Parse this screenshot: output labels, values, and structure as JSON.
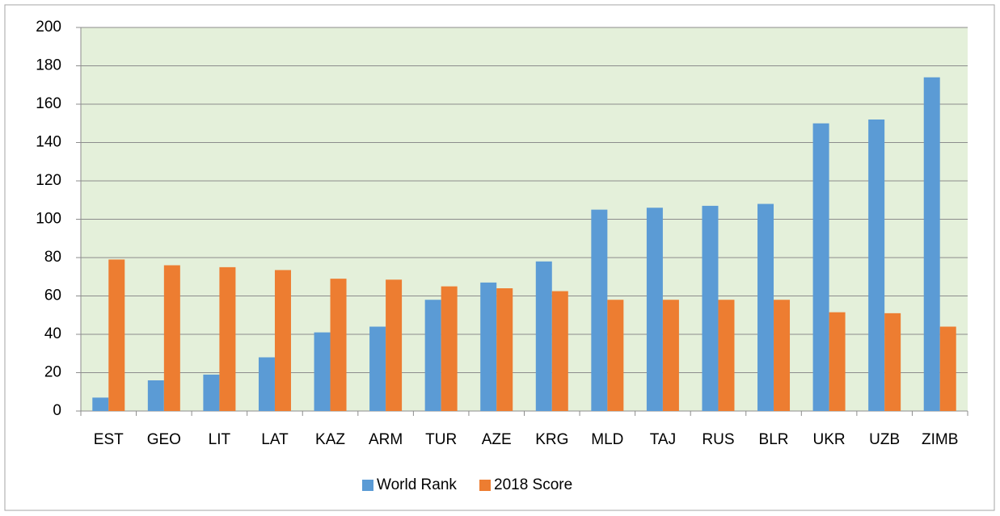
{
  "chart_data": {
    "type": "bar",
    "categories": [
      "EST",
      "GEO",
      "LIT",
      "LAT",
      "KAZ",
      "ARM",
      "TUR",
      "AZE",
      "KRG",
      "MLD",
      "TAJ",
      "RUS",
      "BLR",
      "UKR",
      "UZB",
      "ZIMB"
    ],
    "series": [
      {
        "name": "World Rank",
        "color": "#5b9bd5",
        "values": [
          7,
          16,
          19,
          28,
          41,
          44,
          58,
          67,
          78,
          105,
          106,
          107,
          108,
          150,
          152,
          174
        ]
      },
      {
        "name": "2018 Score",
        "color": "#ed7d31",
        "values": [
          79,
          76,
          75,
          73.5,
          69,
          68.5,
          65,
          64,
          62.5,
          58,
          58,
          58,
          58,
          51.5,
          51,
          44
        ]
      }
    ],
    "ylim": [
      0,
      200
    ],
    "yticks": [
      0,
      20,
      40,
      60,
      80,
      100,
      120,
      140,
      160,
      180,
      200
    ],
    "grid": true,
    "legend": "bottom"
  }
}
